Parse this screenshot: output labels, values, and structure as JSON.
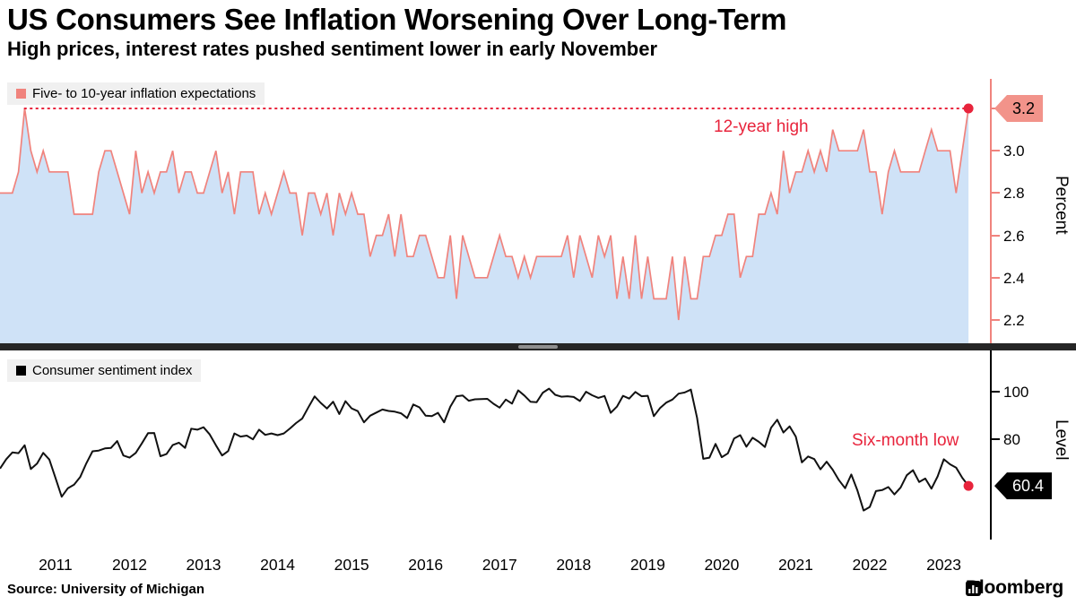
{
  "header": {
    "title": "US Consumers See Inflation Worsening Over Long-Term",
    "subtitle": "High prices, interest rates pushed sentiment lower in early November"
  },
  "source": "Source: University of Michigan",
  "brand": {
    "name": "Bloomberg"
  },
  "colors": {
    "series_pink": "#f0837d",
    "area_blue": "#cfe2f7",
    "accent_red": "#e8243c",
    "badge_salmon": "#f2938a",
    "sentiment_black": "#111111"
  },
  "x_axis": {
    "years": [
      "2011",
      "2012",
      "2013",
      "2014",
      "2015",
      "2016",
      "2017",
      "2018",
      "2019",
      "2020",
      "2021",
      "2022",
      "2023"
    ]
  },
  "chart_data": [
    {
      "type": "area",
      "panel": "top",
      "legend": "Five- to 10-year inflation expectations",
      "ylabel": "Percent",
      "annotation": "12-year high",
      "end_badge": "3.2",
      "ylim": [
        2.09,
        3.34
      ],
      "ytick_values": [
        3.2,
        3.0,
        2.8,
        2.6,
        2.4,
        2.2
      ],
      "ytick_labels": [
        "3.2",
        "3.0",
        "2.8",
        "2.6",
        "2.4",
        "2.2"
      ],
      "x_unit": "monthly",
      "x_start_year": 2010,
      "x_start_month": 10,
      "x_end": "2023-11",
      "values": [
        2.8,
        2.8,
        2.8,
        2.9,
        3.2,
        3.0,
        2.9,
        3.0,
        2.9,
        2.9,
        2.9,
        2.9,
        2.7,
        2.7,
        2.7,
        2.7,
        2.9,
        3.0,
        3.0,
        2.9,
        2.8,
        2.7,
        3.0,
        2.8,
        2.9,
        2.8,
        2.9,
        2.9,
        3.0,
        2.8,
        2.9,
        2.9,
        2.8,
        2.8,
        2.9,
        3.0,
        2.8,
        2.9,
        2.7,
        2.9,
        2.9,
        2.9,
        2.7,
        2.8,
        2.7,
        2.8,
        2.9,
        2.8,
        2.8,
        2.6,
        2.8,
        2.8,
        2.7,
        2.8,
        2.6,
        2.8,
        2.7,
        2.8,
        2.7,
        2.7,
        2.5,
        2.6,
        2.6,
        2.7,
        2.5,
        2.7,
        2.5,
        2.5,
        2.6,
        2.6,
        2.5,
        2.4,
        2.4,
        2.6,
        2.3,
        2.6,
        2.5,
        2.4,
        2.4,
        2.4,
        2.5,
        2.6,
        2.5,
        2.5,
        2.4,
        2.5,
        2.4,
        2.5,
        2.5,
        2.5,
        2.5,
        2.5,
        2.6,
        2.4,
        2.6,
        2.5,
        2.4,
        2.6,
        2.5,
        2.6,
        2.3,
        2.5,
        2.3,
        2.6,
        2.3,
        2.5,
        2.3,
        2.3,
        2.3,
        2.5,
        2.2,
        2.5,
        2.3,
        2.3,
        2.5,
        2.5,
        2.6,
        2.6,
        2.7,
        2.7,
        2.4,
        2.5,
        2.5,
        2.7,
        2.7,
        2.8,
        2.7,
        3.0,
        2.8,
        2.9,
        2.9,
        3.0,
        2.9,
        3.0,
        2.9,
        3.1,
        3.0,
        3.0,
        3.0,
        3.0,
        3.1,
        2.9,
        2.9,
        2.7,
        2.9,
        3.0,
        2.9,
        2.9,
        2.9,
        2.9,
        3.0,
        3.1,
        3.0,
        3.0,
        3.0,
        2.8,
        3.0,
        3.2
      ]
    },
    {
      "type": "line",
      "panel": "bottom",
      "legend": "Consumer sentiment index",
      "ylabel": "Level",
      "annotation": "Six-month low",
      "end_badge": "60.4",
      "ylim": [
        38.5,
        116
      ],
      "ytick_values": [
        100,
        80
      ],
      "ytick_labels": [
        "100",
        "80"
      ],
      "x_unit": "monthly",
      "x_start_year": 2010,
      "x_start_month": 10,
      "x_end": "2023-11",
      "values": [
        67.7,
        71.6,
        74.5,
        74.2,
        77.5,
        67.5,
        69.8,
        74.3,
        71.5,
        63.7,
        55.8,
        59.4,
        60.9,
        64.1,
        69.9,
        75.0,
        75.3,
        76.2,
        76.4,
        79.3,
        73.2,
        72.3,
        74.3,
        78.3,
        82.6,
        82.7,
        72.9,
        73.8,
        77.6,
        78.6,
        76.4,
        84.5,
        84.1,
        85.1,
        82.1,
        77.5,
        73.2,
        75.1,
        82.5,
        81.2,
        81.6,
        80.0,
        84.1,
        81.9,
        82.5,
        81.8,
        82.5,
        84.6,
        86.9,
        88.8,
        93.6,
        98.1,
        95.4,
        93.0,
        95.9,
        90.7,
        96.1,
        93.1,
        91.9,
        87.2,
        90.0,
        91.3,
        92.6,
        92.0,
        91.7,
        91.0,
        89.0,
        94.7,
        93.5,
        90.0,
        89.8,
        91.2,
        87.2,
        93.8,
        98.2,
        98.5,
        96.3,
        96.9,
        97.0,
        97.1,
        95.0,
        93.4,
        96.8,
        95.1,
        100.7,
        98.5,
        95.9,
        95.7,
        99.7,
        101.4,
        98.8,
        98.0,
        98.2,
        97.9,
        96.2,
        100.1,
        98.6,
        97.5,
        98.3,
        91.2,
        93.8,
        98.4,
        97.2,
        100.0,
        98.2,
        98.4,
        89.8,
        93.2,
        95.5,
        96.8,
        99.3,
        99.8,
        101.0,
        89.1,
        71.8,
        72.3,
        78.1,
        72.5,
        74.1,
        80.4,
        81.8,
        76.9,
        80.7,
        79.0,
        76.8,
        84.9,
        88.3,
        82.9,
        85.5,
        81.2,
        70.3,
        72.8,
        71.7,
        67.4,
        70.6,
        67.2,
        62.8,
        59.4,
        65.2,
        58.4,
        50.0,
        51.5,
        58.2,
        58.6,
        59.9,
        56.8,
        59.7,
        64.9,
        67.0,
        62.0,
        63.5,
        59.2,
        64.4,
        71.6,
        69.5,
        68.1,
        63.8,
        60.4
      ]
    }
  ]
}
